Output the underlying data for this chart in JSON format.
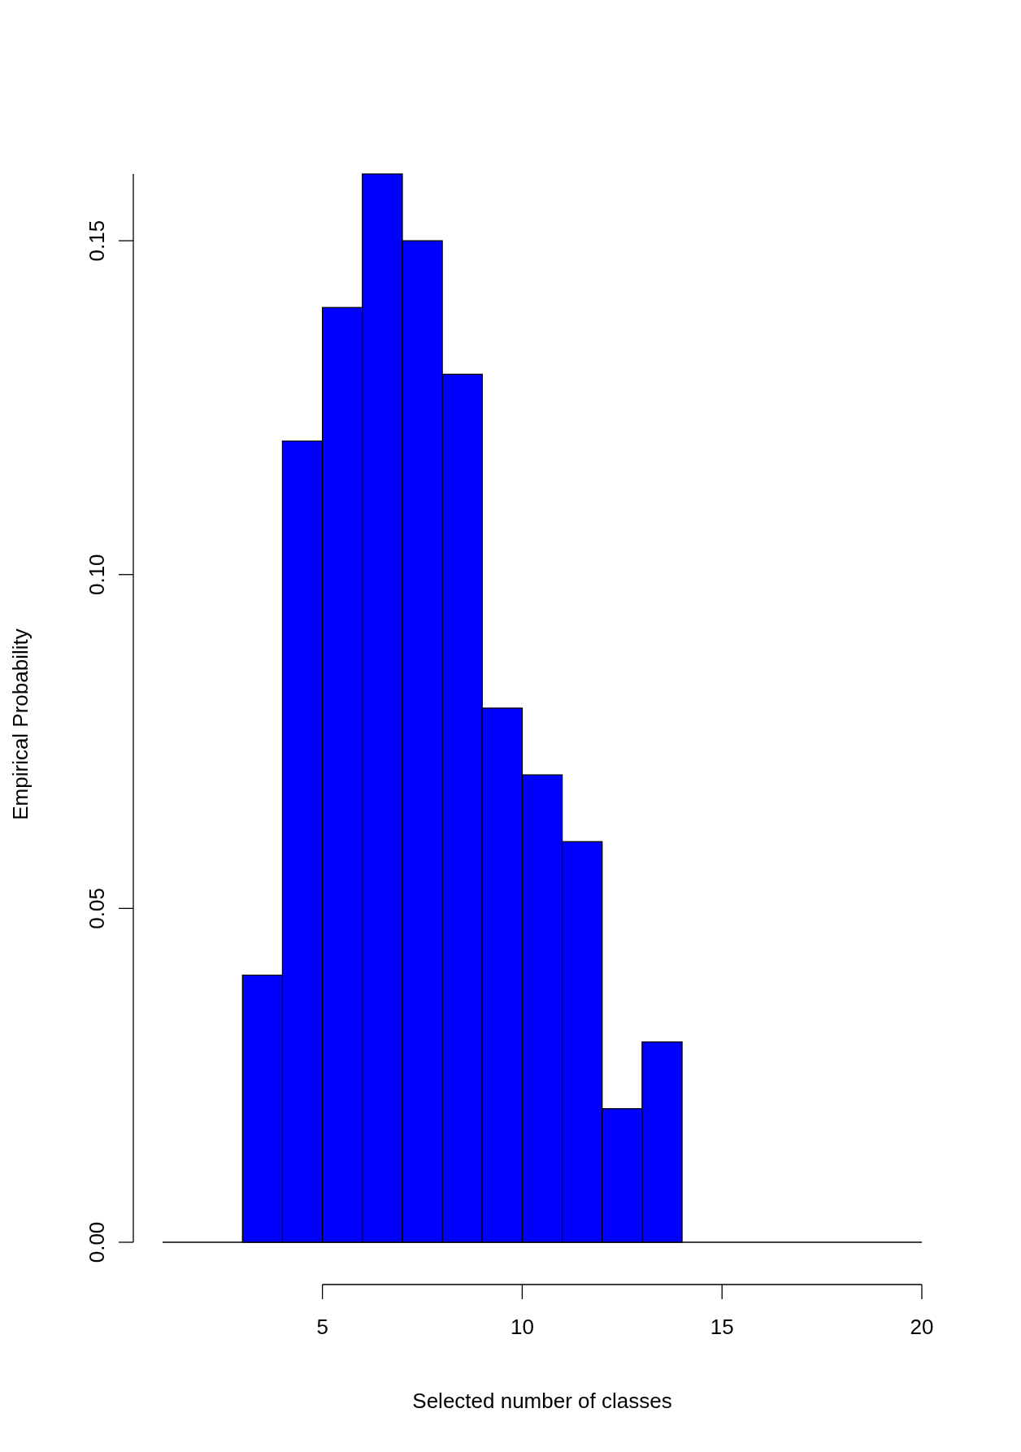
{
  "chart_data": {
    "type": "histogram",
    "xlabel": "Selected number of classes",
    "ylabel": "Empirical Probability",
    "bins": [
      1,
      2,
      3,
      4,
      5,
      6,
      7,
      8,
      9,
      10,
      11,
      12,
      13,
      14,
      15,
      16,
      17,
      18,
      19,
      20
    ],
    "values": [
      0,
      0,
      0.04,
      0.12,
      0.14,
      0.16,
      0.15,
      0.13,
      0.08,
      0.07,
      0.06,
      0.02,
      0.03,
      0,
      0,
      0,
      0,
      0,
      0
    ],
    "color": "#0000ff",
    "xlim": [
      1,
      20
    ],
    "xticks": [
      5,
      10,
      15,
      20
    ],
    "ylim": [
      0,
      0.16
    ],
    "yticks": [
      {
        "value": 0,
        "label": "0.00"
      },
      {
        "value": 0.05,
        "label": "0.05"
      },
      {
        "value": 0.1,
        "label": "0.10"
      },
      {
        "value": 0.15,
        "label": "0.15"
      }
    ],
    "grid": false
  }
}
